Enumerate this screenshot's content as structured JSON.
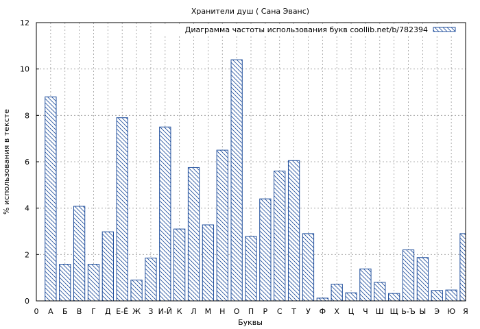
{
  "chart_data": {
    "type": "bar",
    "title": "Хранители душ ( Сана Эванс)",
    "xlabel": "Буквы",
    "ylabel": "% использования в тексте",
    "legend_label": "Диаграмма частоты использования букв coollib.net/b/782394",
    "legend_position": "top-right",
    "grid": true,
    "ylim": [
      0,
      12
    ],
    "yticks": [
      "0",
      "2",
      "4",
      "6",
      "8",
      "10",
      "12"
    ],
    "x_start_label": "0",
    "categories": [
      "А",
      "Б",
      "В",
      "Г",
      "Д",
      "Е-Ё",
      "Ж",
      "З",
      "И-Й",
      "К",
      "Л",
      "М",
      "Н",
      "О",
      "П",
      "Р",
      "С",
      "Т",
      "У",
      "Ф",
      "Х",
      "Ц",
      "Ч",
      "Ш",
      "Щ",
      "Ь-Ъ",
      "Ы",
      "Э",
      "Ю",
      "Я"
    ],
    "values": [
      8.8,
      1.58,
      4.08,
      1.58,
      2.98,
      7.9,
      0.9,
      1.85,
      7.5,
      3.1,
      5.75,
      3.28,
      6.5,
      10.4,
      2.78,
      4.4,
      5.6,
      6.05,
      2.9,
      0.12,
      0.72,
      0.35,
      1.38,
      0.8,
      0.32,
      2.2,
      1.87,
      0.45,
      0.47,
      2.9
    ],
    "colors": {
      "bar_stroke": "#1f4e9c",
      "bar_hatch": "#1f4e9c",
      "grid": "#999999",
      "axis": "#000000"
    }
  }
}
